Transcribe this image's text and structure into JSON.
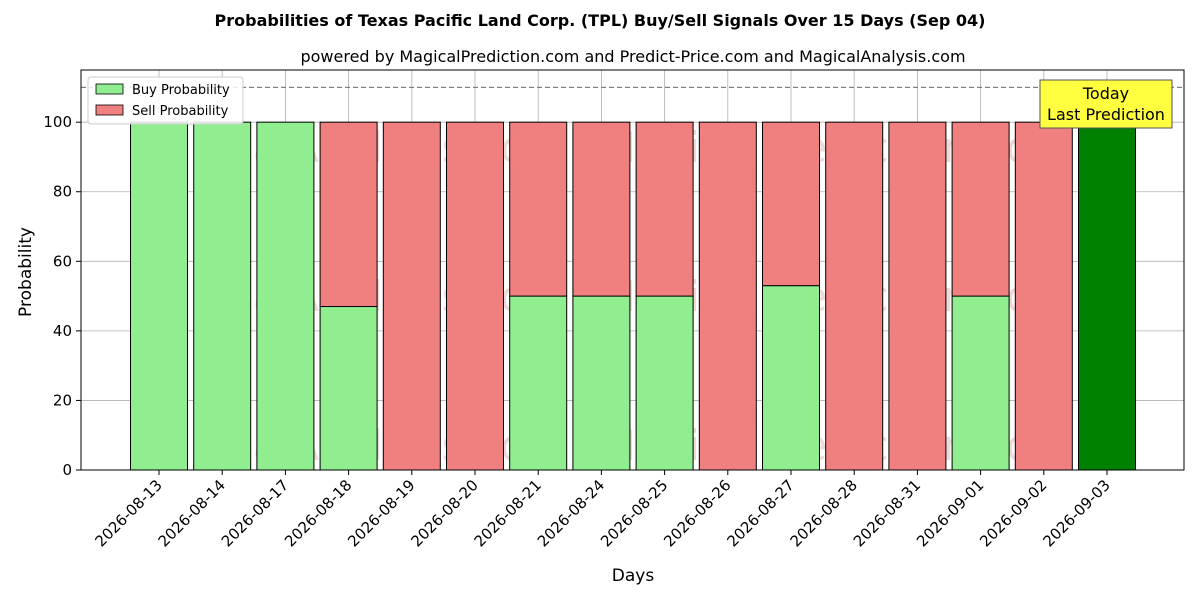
{
  "chart_data": {
    "type": "bar",
    "stacked": true,
    "title": "Probabilities of Texas Pacific Land Corp. (TPL) Buy/Sell Signals Over 15 Days (Sep 04)",
    "subtitle": "powered by MagicalPrediction.com and Predict-Price.com and MagicalAnalysis.com",
    "xlabel": "Days",
    "ylabel": "Probability",
    "ylim": [
      0,
      115
    ],
    "yticks": [
      0,
      20,
      40,
      60,
      80,
      100
    ],
    "grid": true,
    "legend_position": "top-left",
    "reference_line": 110,
    "categories": [
      "2026-08-13",
      "2026-08-14",
      "2026-08-17",
      "2026-08-18",
      "2026-08-19",
      "2026-08-20",
      "2026-08-21",
      "2026-08-24",
      "2026-08-25",
      "2026-08-26",
      "2026-08-27",
      "2026-08-28",
      "2026-08-31",
      "2026-09-01",
      "2026-09-02",
      "2026-09-03"
    ],
    "series": [
      {
        "name": "Buy Probability",
        "color": "#90ee90",
        "values": [
          100,
          100,
          100,
          47,
          0,
          0,
          50,
          50,
          50,
          0,
          53,
          0,
          0,
          50,
          0,
          100
        ]
      },
      {
        "name": "Sell Probability",
        "color": "#f08080",
        "values": [
          0,
          0,
          0,
          53,
          100,
          100,
          50,
          50,
          50,
          100,
          47,
          100,
          100,
          50,
          100,
          0
        ]
      }
    ],
    "highlight": {
      "category": "2026-09-03",
      "color": "#008000"
    },
    "annotation": {
      "lines": [
        "Today",
        "Last Prediction"
      ],
      "background": "#ffff40"
    },
    "watermarks": [
      "MagicalAnalysis.com",
      "MagicalPrediction.com"
    ]
  }
}
